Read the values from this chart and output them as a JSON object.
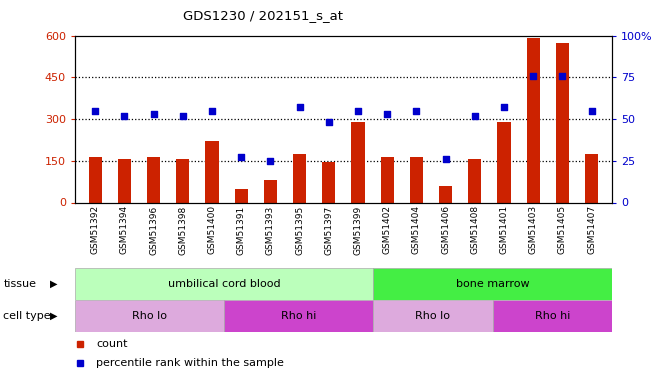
{
  "title": "GDS1230 / 202151_s_at",
  "samples": [
    "GSM51392",
    "GSM51394",
    "GSM51396",
    "GSM51398",
    "GSM51400",
    "GSM51391",
    "GSM51393",
    "GSM51395",
    "GSM51397",
    "GSM51399",
    "GSM51402",
    "GSM51404",
    "GSM51406",
    "GSM51408",
    "GSM51401",
    "GSM51403",
    "GSM51405",
    "GSM51407"
  ],
  "bar_values": [
    165,
    155,
    162,
    155,
    220,
    50,
    80,
    175,
    145,
    290,
    162,
    162,
    60,
    155,
    290,
    590,
    575,
    175
  ],
  "dot_values": [
    55,
    52,
    53,
    52,
    55,
    27,
    25,
    57,
    48,
    55,
    53,
    55,
    26,
    52,
    57,
    76,
    76,
    55
  ],
  "bar_color": "#cc2200",
  "dot_color": "#0000cc",
  "ylim_left": [
    0,
    600
  ],
  "ylim_right": [
    0,
    100
  ],
  "yticks_left": [
    0,
    150,
    300,
    450,
    600
  ],
  "yticks_right": [
    0,
    25,
    50,
    75,
    100
  ],
  "ytick_labels_right": [
    "0",
    "25",
    "50",
    "75",
    "100%"
  ],
  "hlines": [
    150,
    300,
    450
  ],
  "tissue_groups": [
    {
      "label": "umbilical cord blood",
      "start": 0,
      "end": 10,
      "color": "#bbffbb"
    },
    {
      "label": "bone marrow",
      "start": 10,
      "end": 18,
      "color": "#44ee44"
    }
  ],
  "cell_type_groups": [
    {
      "label": "Rho lo",
      "start": 0,
      "end": 5,
      "color": "#ddaadd"
    },
    {
      "label": "Rho hi",
      "start": 5,
      "end": 10,
      "color": "#cc44cc"
    },
    {
      "label": "Rho lo",
      "start": 10,
      "end": 14,
      "color": "#ddaadd"
    },
    {
      "label": "Rho hi",
      "start": 14,
      "end": 18,
      "color": "#cc44cc"
    }
  ],
  "tissue_label": "tissue",
  "cell_type_label": "cell type",
  "background_color": "#ffffff",
  "plot_bg_color": "#ffffff"
}
